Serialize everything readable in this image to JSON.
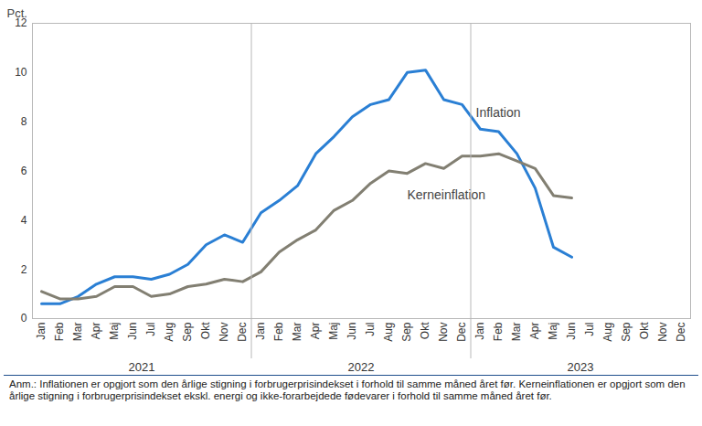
{
  "chart_data": {
    "type": "line",
    "y_label": "Pct.",
    "categories": [
      "Jan",
      "Feb",
      "Mar",
      "Apr",
      "Maj",
      "Jun",
      "Jul",
      "Aug",
      "Sep",
      "Okt",
      "Nov",
      "Dec",
      "Jan",
      "Feb",
      "Mar",
      "Apr",
      "Maj",
      "Jun",
      "Jul",
      "Aug",
      "Sep",
      "Okt",
      "Nov",
      "Dec",
      "Jan",
      "Feb",
      "Mar",
      "Apr",
      "Maj",
      "Jun",
      "Jul",
      "Aug",
      "Sep",
      "Okt",
      "Nov",
      "Dec"
    ],
    "years": [
      2021,
      2022,
      2023
    ],
    "series": [
      {
        "name": "Inflation",
        "color": "#2a7fd4",
        "values": [
          0.6,
          0.6,
          0.9,
          1.4,
          1.7,
          1.7,
          1.6,
          1.8,
          2.2,
          3.0,
          3.4,
          3.1,
          4.3,
          4.8,
          5.4,
          6.7,
          7.4,
          8.2,
          8.7,
          8.9,
          10.0,
          10.1,
          8.9,
          8.7,
          7.7,
          7.6,
          6.7,
          5.3,
          2.9,
          2.5,
          null,
          null,
          null,
          null,
          null,
          null
        ]
      },
      {
        "name": "Kerneinflation",
        "color": "#827f72",
        "values": [
          1.1,
          0.8,
          0.8,
          0.9,
          1.3,
          1.3,
          0.9,
          1.0,
          1.3,
          1.4,
          1.6,
          1.5,
          1.9,
          2.7,
          3.2,
          3.6,
          4.4,
          4.8,
          5.5,
          6.0,
          5.9,
          6.3,
          6.1,
          6.6,
          6.6,
          6.7,
          6.4,
          6.1,
          5.0,
          4.9,
          null,
          null,
          null,
          null,
          null,
          null
        ]
      }
    ],
    "ylim": [
      0,
      12
    ],
    "yticks": [
      0,
      2,
      4,
      6,
      8,
      10,
      12
    ],
    "grid": false,
    "note": "Anm.: Inflationen er opgjort som den årlige stigning i forbrugerprisindekset i forhold til samme måned året før. Kerneinflationen er opgjort som den årlige stigning i forbrugerprisindekset ekskl. energi og ikke-forarbejdede fødevarer i forhold til samme måned året før."
  }
}
